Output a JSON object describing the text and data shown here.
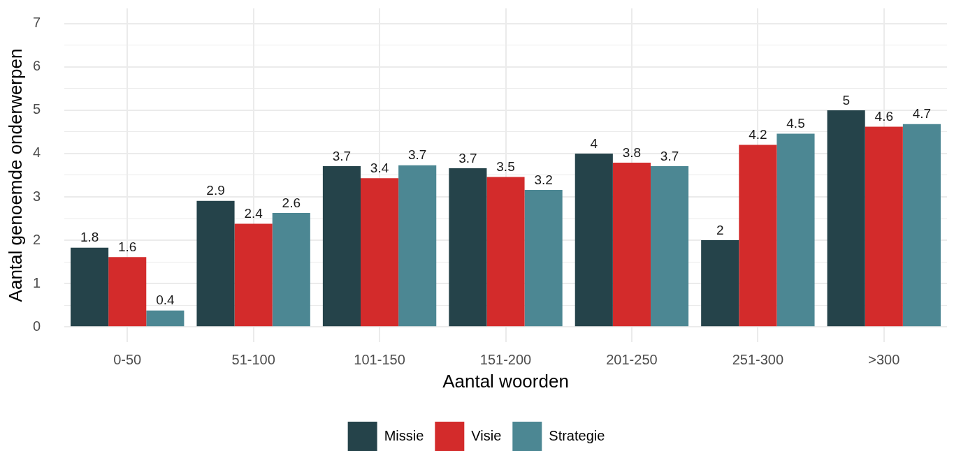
{
  "chart_data": {
    "type": "bar",
    "xlabel": "Aantal woorden",
    "ylabel": "Aantal genoemde onderwerpen",
    "categories": [
      "0-50",
      "51-100",
      "101-150",
      "151-200",
      "201-250",
      "251-300",
      ">300"
    ],
    "series": [
      {
        "name": "Missie",
        "color": "#25434a",
        "values": [
          1.83,
          2.91,
          3.71,
          3.66,
          4,
          2,
          5
        ],
        "value_labels": [
          "1.8",
          "2.9",
          "3.7",
          "3.7",
          "4",
          "2",
          "5"
        ]
      },
      {
        "name": "Visie",
        "color": "#d32b2b",
        "values": [
          1.61,
          2.38,
          3.43,
          3.46,
          3.79,
          4.2,
          4.62
        ],
        "value_labels": [
          "1.6",
          "2.4",
          "3.4",
          "3.5",
          "3.8",
          "4.2",
          "4.6"
        ]
      },
      {
        "name": "Strategie",
        "color": "#4c8793",
        "values": [
          0.38,
          2.63,
          3.73,
          3.16,
          3.71,
          4.46,
          4.68
        ],
        "value_labels": [
          "0.4",
          "2.6",
          "3.7",
          "3.2",
          "3.7",
          "4.5",
          "4.7"
        ]
      }
    ],
    "ylim": [
      -0.35,
      7.35
    ],
    "yticks": [
      0,
      {
        "value": 0.5,
        "label": null
      },
      1,
      {
        "value": 1.5,
        "label": null
      },
      2,
      {
        "value": 2.5,
        "label": null
      },
      3,
      {
        "value": 3.5,
        "label": null
      },
      4,
      {
        "value": 4.5,
        "label": null
      },
      5,
      {
        "value": 5.5,
        "label": null
      },
      6,
      {
        "value": 6.5,
        "label": null
      },
      7
    ],
    "grid": true,
    "legend": "bottom"
  }
}
